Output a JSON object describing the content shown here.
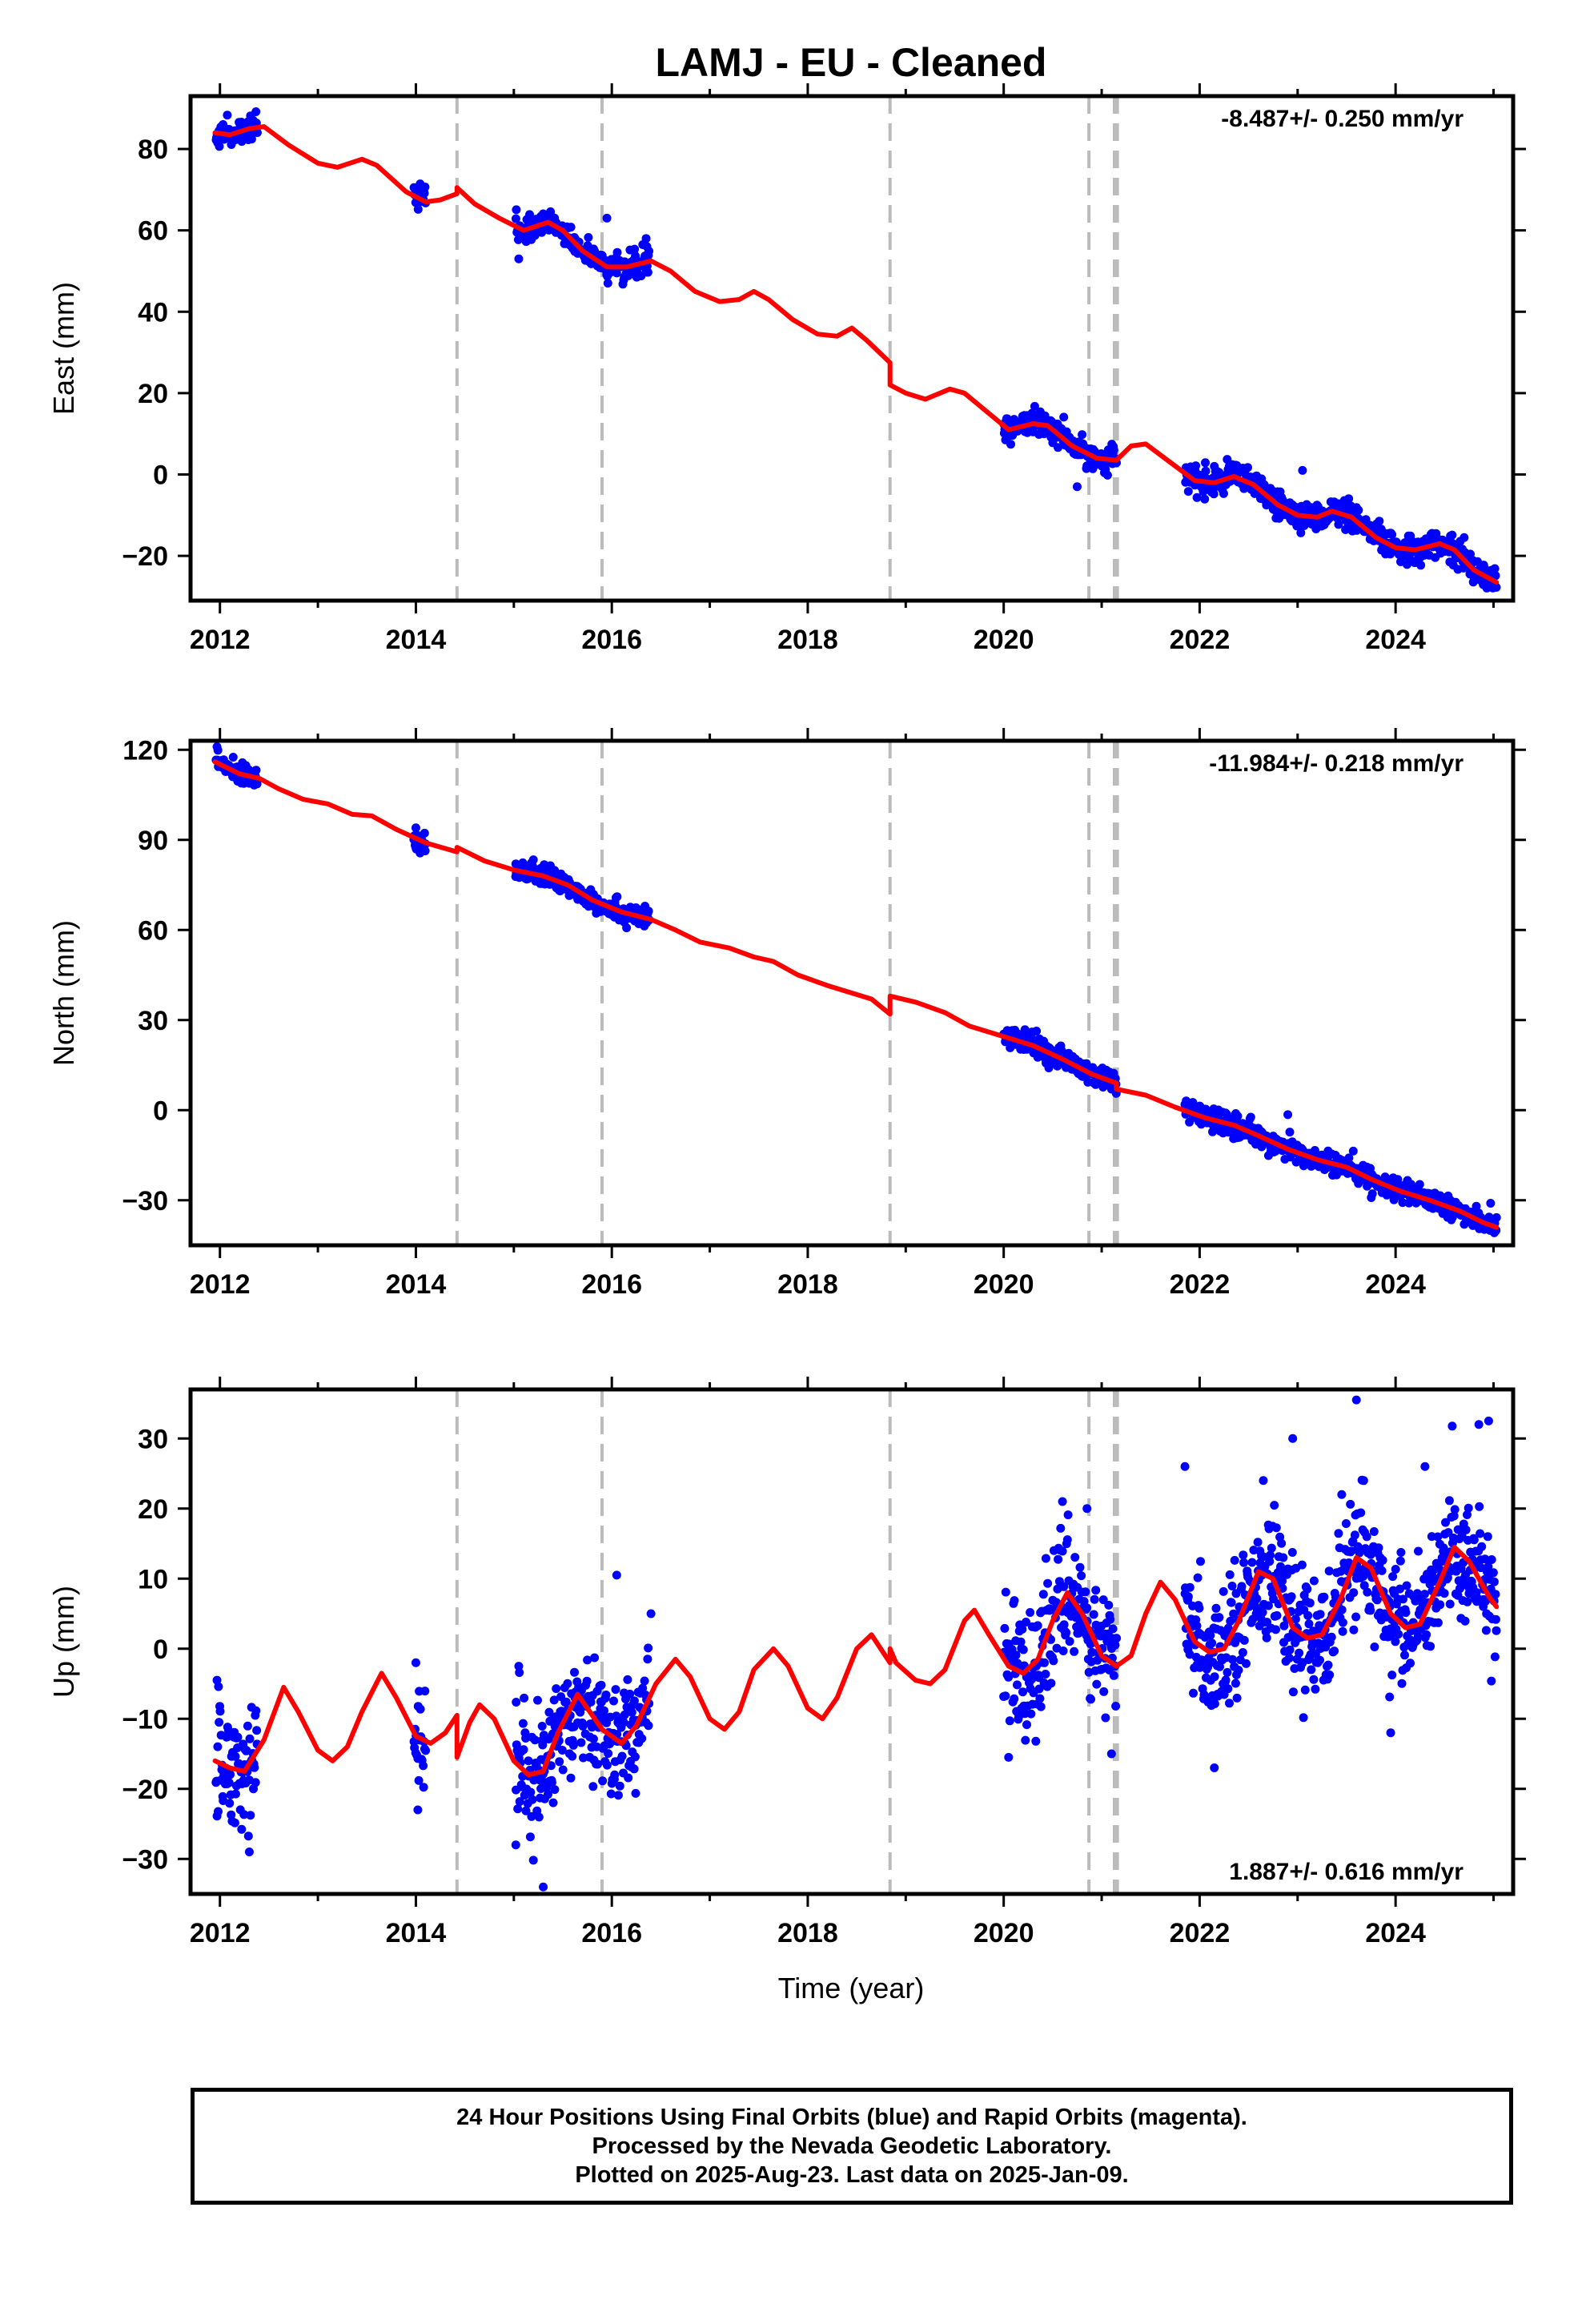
{
  "figure": {
    "title": "LAMJ  - EU - Cleaned",
    "x_axis_label": "Time (year)",
    "footer": [
      "24 Hour Positions Using Final Orbits (blue) and Rapid Orbits (magenta).",
      "Processed by the Nevada Geodetic Laboratory.",
      "Plotted on 2025-Aug-23. Last data on 2025-Jan-09."
    ]
  },
  "colors": {
    "data_points": "#0000ff",
    "model_fit": "#ff0000",
    "event_lines": "#bbbbbb",
    "frame": "#000000"
  },
  "chart_data": [
    {
      "type": "scatter",
      "name": "east",
      "ylabel": "East (mm)",
      "xlim": [
        2011.7,
        2025.2
      ],
      "ylim": [
        -31,
        93
      ],
      "xticks": [
        2012,
        2014,
        2016,
        2018,
        2020,
        2022,
        2024
      ],
      "yticks": [
        -20,
        0,
        20,
        40,
        60,
        80
      ],
      "rate_label": "-8.487+/- 0.250 mm/yr",
      "rate_position": "top-right",
      "events": [
        2014.42,
        2015.9,
        2018.84,
        2020.87,
        2021.13,
        2021.16
      ],
      "data_segments": [
        [
          2011.96,
          2012.38
        ],
        [
          2013.98,
          2014.1
        ],
        [
          2015.02,
          2016.38
        ],
        [
          2020.0,
          2021.15
        ],
        [
          2021.85,
          2025.03
        ]
      ],
      "noise": 1.6,
      "model": [
        [
          2011.95,
          84
        ],
        [
          2012.1,
          83.5
        ],
        [
          2012.3,
          85
        ],
        [
          2012.45,
          85.5
        ],
        [
          2012.7,
          81
        ],
        [
          2013.0,
          76.5
        ],
        [
          2013.2,
          75.5
        ],
        [
          2013.45,
          77.5
        ],
        [
          2013.6,
          76
        ],
        [
          2013.9,
          69.5
        ],
        [
          2014.1,
          67
        ],
        [
          2014.25,
          67.5
        ],
        [
          2014.42,
          69
        ],
        [
          2014.42,
          70.5
        ],
        [
          2014.6,
          66.5
        ],
        [
          2014.85,
          63
        ],
        [
          2015.1,
          60
        ],
        [
          2015.35,
          62
        ],
        [
          2015.5,
          60
        ],
        [
          2015.7,
          55
        ],
        [
          2015.95,
          51
        ],
        [
          2016.15,
          51
        ],
        [
          2016.4,
          52.5
        ],
        [
          2016.6,
          50
        ],
        [
          2016.85,
          45
        ],
        [
          2017.1,
          42.5
        ],
        [
          2017.3,
          43
        ],
        [
          2017.45,
          45
        ],
        [
          2017.6,
          43
        ],
        [
          2017.85,
          38
        ],
        [
          2018.1,
          34.5
        ],
        [
          2018.3,
          34
        ],
        [
          2018.45,
          36
        ],
        [
          2018.6,
          33
        ],
        [
          2018.84,
          27.5
        ],
        [
          2018.84,
          22
        ],
        [
          2019.0,
          20
        ],
        [
          2019.2,
          18.5
        ],
        [
          2019.45,
          21
        ],
        [
          2019.6,
          20
        ],
        [
          2019.85,
          15
        ],
        [
          2020.05,
          11
        ],
        [
          2020.3,
          12.5
        ],
        [
          2020.45,
          12
        ],
        [
          2020.7,
          7
        ],
        [
          2020.95,
          4
        ],
        [
          2021.15,
          3.5
        ],
        [
          2021.3,
          7
        ],
        [
          2021.45,
          7.5
        ],
        [
          2021.7,
          3
        ],
        [
          2021.95,
          -1.5
        ],
        [
          2022.15,
          -2
        ],
        [
          2022.35,
          -0.5
        ],
        [
          2022.55,
          -2.5
        ],
        [
          2022.8,
          -7.5
        ],
        [
          2023.0,
          -10
        ],
        [
          2023.2,
          -10.5
        ],
        [
          2023.35,
          -9
        ],
        [
          2023.55,
          -10.5
        ],
        [
          2023.8,
          -15.5
        ],
        [
          2024.0,
          -18
        ],
        [
          2024.2,
          -18.5
        ],
        [
          2024.45,
          -17
        ],
        [
          2024.6,
          -18.5
        ],
        [
          2024.8,
          -23.5
        ],
        [
          2025.03,
          -26.5
        ]
      ],
      "outliers": [
        [
          2015.05,
          53
        ],
        [
          2015.95,
          63
        ],
        [
          2020.75,
          -3
        ],
        [
          2023.05,
          1
        ],
        [
          2024.7,
          -15.5
        ],
        [
          2022.15,
          2
        ],
        [
          2016.35,
          58
        ]
      ]
    },
    {
      "type": "scatter",
      "name": "north",
      "ylabel": "North (mm)",
      "xlim": [
        2011.7,
        2025.2
      ],
      "ylim": [
        -45,
        123
      ],
      "xticks": [
        2012,
        2014,
        2016,
        2018,
        2020,
        2022,
        2024
      ],
      "yticks": [
        -30,
        0,
        30,
        60,
        90,
        120
      ],
      "rate_label": "-11.984+/- 0.218 mm/yr",
      "rate_position": "top-right",
      "events": [
        2014.42,
        2015.9,
        2018.84,
        2020.87,
        2021.13,
        2021.16
      ],
      "data_segments": [
        [
          2011.96,
          2012.38
        ],
        [
          2013.98,
          2014.1
        ],
        [
          2015.02,
          2016.38
        ],
        [
          2020.0,
          2021.15
        ],
        [
          2021.85,
          2025.03
        ]
      ],
      "noise": 1.8,
      "model": [
        [
          2011.95,
          116
        ],
        [
          2012.2,
          112
        ],
        [
          2012.4,
          110.5
        ],
        [
          2012.6,
          107
        ],
        [
          2012.85,
          103.5
        ],
        [
          2013.1,
          102
        ],
        [
          2013.35,
          98.5
        ],
        [
          2013.55,
          98
        ],
        [
          2013.8,
          93.5
        ],
        [
          2014.1,
          89
        ],
        [
          2014.42,
          86
        ],
        [
          2014.42,
          87.5
        ],
        [
          2014.7,
          83
        ],
        [
          2015.0,
          80
        ],
        [
          2015.3,
          78
        ],
        [
          2015.55,
          75
        ],
        [
          2015.8,
          70
        ],
        [
          2016.1,
          66
        ],
        [
          2016.4,
          63.5
        ],
        [
          2016.65,
          60
        ],
        [
          2016.9,
          56
        ],
        [
          2017.2,
          54
        ],
        [
          2017.45,
          51
        ],
        [
          2017.65,
          49.5
        ],
        [
          2017.9,
          45
        ],
        [
          2018.2,
          41.5
        ],
        [
          2018.45,
          39
        ],
        [
          2018.65,
          37
        ],
        [
          2018.84,
          32
        ],
        [
          2018.84,
          38
        ],
        [
          2019.1,
          36
        ],
        [
          2019.4,
          32.5
        ],
        [
          2019.65,
          28
        ],
        [
          2019.95,
          25
        ],
        [
          2020.3,
          21.5
        ],
        [
          2020.6,
          17
        ],
        [
          2020.9,
          12
        ],
        [
          2021.15,
          9
        ],
        [
          2021.15,
          7
        ],
        [
          2021.45,
          5
        ],
        [
          2021.75,
          1
        ],
        [
          2022.05,
          -2.5
        ],
        [
          2022.35,
          -5
        ],
        [
          2022.6,
          -8.5
        ],
        [
          2022.9,
          -13
        ],
        [
          2023.2,
          -16.5
        ],
        [
          2023.5,
          -19
        ],
        [
          2023.75,
          -23
        ],
        [
          2024.05,
          -27
        ],
        [
          2024.35,
          -30
        ],
        [
          2024.65,
          -33.5
        ],
        [
          2024.9,
          -37.5
        ],
        [
          2025.03,
          -39
        ]
      ],
      "outliers": [
        [
          2011.97,
          121
        ],
        [
          2015.02,
          82
        ],
        [
          2014.0,
          94
        ],
        [
          2022.9,
          -1.5
        ],
        [
          2024.97,
          -31
        ],
        [
          2021.1,
          7
        ]
      ]
    },
    {
      "type": "scatter",
      "name": "up",
      "ylabel": "Up (mm)",
      "xlim": [
        2011.7,
        2025.2
      ],
      "ylim": [
        -35,
        37
      ],
      "xticks": [
        2012,
        2014,
        2016,
        2018,
        2020,
        2022,
        2024
      ],
      "yticks": [
        -30,
        -20,
        -10,
        0,
        10,
        20,
        30
      ],
      "rate_label": "1.887+/- 0.616 mm/yr",
      "rate_position": "bottom-right",
      "events": [
        2014.42,
        2015.9,
        2018.84,
        2020.87,
        2021.13,
        2021.16
      ],
      "data_segments": [
        [
          2011.96,
          2012.38
        ],
        [
          2013.98,
          2014.1
        ],
        [
          2015.02,
          2016.38
        ],
        [
          2020.0,
          2021.15
        ],
        [
          2021.85,
          2025.03
        ]
      ],
      "noise": 4.2,
      "model": [
        [
          2011.95,
          -16
        ],
        [
          2012.1,
          -17
        ],
        [
          2012.25,
          -17.5
        ],
        [
          2012.45,
          -13
        ],
        [
          2012.65,
          -5.5
        ],
        [
          2012.8,
          -9
        ],
        [
          2013.0,
          -14.5
        ],
        [
          2013.15,
          -16
        ],
        [
          2013.3,
          -14
        ],
        [
          2013.45,
          -9
        ],
        [
          2013.65,
          -3.5
        ],
        [
          2013.8,
          -7
        ],
        [
          2014.0,
          -12.5
        ],
        [
          2014.15,
          -13.5
        ],
        [
          2014.3,
          -12
        ],
        [
          2014.42,
          -9.5
        ],
        [
          2014.42,
          -15.5
        ],
        [
          2014.55,
          -10.5
        ],
        [
          2014.65,
          -8
        ],
        [
          2014.8,
          -10
        ],
        [
          2015.0,
          -16
        ],
        [
          2015.15,
          -18
        ],
        [
          2015.3,
          -17.5
        ],
        [
          2015.45,
          -12
        ],
        [
          2015.65,
          -6.5
        ],
        [
          2015.9,
          -11.5
        ],
        [
          2016.1,
          -13.5
        ],
        [
          2016.25,
          -11
        ],
        [
          2016.45,
          -5
        ],
        [
          2016.65,
          -1.5
        ],
        [
          2016.8,
          -4
        ],
        [
          2017.0,
          -10
        ],
        [
          2017.15,
          -11.5
        ],
        [
          2017.3,
          -9
        ],
        [
          2017.45,
          -3
        ],
        [
          2017.65,
          0
        ],
        [
          2017.8,
          -2.5
        ],
        [
          2018.0,
          -8.5
        ],
        [
          2018.15,
          -10
        ],
        [
          2018.3,
          -7
        ],
        [
          2018.5,
          0
        ],
        [
          2018.65,
          2
        ],
        [
          2018.84,
          -2
        ],
        [
          2018.84,
          0
        ],
        [
          2018.9,
          -2
        ],
        [
          2019.1,
          -4.5
        ],
        [
          2019.25,
          -5
        ],
        [
          2019.4,
          -3
        ],
        [
          2019.6,
          4
        ],
        [
          2019.7,
          5.5
        ],
        [
          2019.85,
          2
        ],
        [
          2020.05,
          -2.5
        ],
        [
          2020.2,
          -3.5
        ],
        [
          2020.35,
          -1.5
        ],
        [
          2020.5,
          4
        ],
        [
          2020.65,
          8
        ],
        [
          2020.8,
          5
        ],
        [
          2021.0,
          -1
        ],
        [
          2021.15,
          -2.5
        ],
        [
          2021.3,
          -1
        ],
        [
          2021.45,
          5
        ],
        [
          2021.6,
          9.5
        ],
        [
          2021.75,
          7
        ],
        [
          2021.95,
          1
        ],
        [
          2022.1,
          -0.5
        ],
        [
          2022.25,
          0
        ],
        [
          2022.4,
          4
        ],
        [
          2022.6,
          11
        ],
        [
          2022.75,
          10
        ],
        [
          2022.95,
          3
        ],
        [
          2023.1,
          1.5
        ],
        [
          2023.25,
          2
        ],
        [
          2023.45,
          7.5
        ],
        [
          2023.6,
          13
        ],
        [
          2023.75,
          11.5
        ],
        [
          2023.95,
          5
        ],
        [
          2024.1,
          3
        ],
        [
          2024.25,
          3.5
        ],
        [
          2024.45,
          9.5
        ],
        [
          2024.6,
          14.5
        ],
        [
          2024.75,
          12.5
        ],
        [
          2024.95,
          7.5
        ],
        [
          2025.03,
          6
        ]
      ],
      "outliers": [
        [
          2011.97,
          -4.5
        ],
        [
          2014.0,
          -2
        ],
        [
          2014.02,
          -23
        ],
        [
          2015.05,
          -2.5
        ],
        [
          2015.3,
          -34
        ],
        [
          2016.05,
          10.5
        ],
        [
          2016.4,
          5
        ],
        [
          2020.6,
          21
        ],
        [
          2020.85,
          20
        ],
        [
          2021.1,
          -15
        ],
        [
          2022.15,
          -17
        ],
        [
          2021.85,
          26
        ],
        [
          2022.65,
          24
        ],
        [
          2022.95,
          30
        ],
        [
          2023.6,
          35.5
        ],
        [
          2023.45,
          22
        ],
        [
          2024.3,
          26
        ],
        [
          2024.85,
          32
        ],
        [
          2024.95,
          32.5
        ],
        [
          2020.05,
          -15.5
        ],
        [
          2023.95,
          -12
        ],
        [
          2015.02,
          -28
        ],
        [
          2012.3,
          -29
        ]
      ]
    }
  ]
}
